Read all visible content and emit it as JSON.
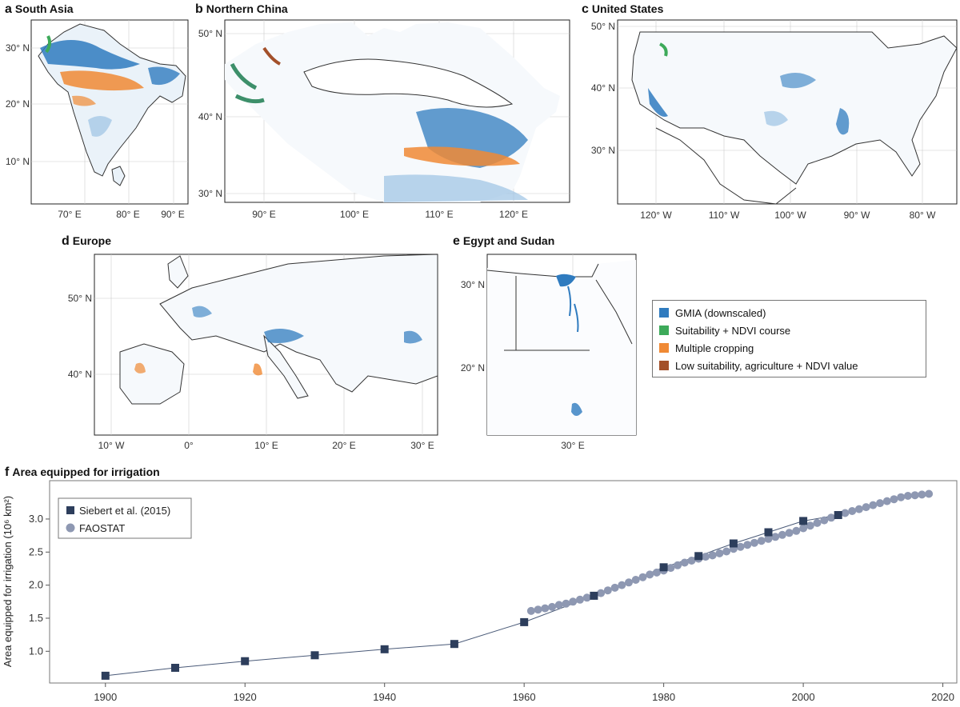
{
  "panels": {
    "a": {
      "letter": "a",
      "title": "South Asia",
      "x_ticks": [
        "70° E",
        "80° E",
        "90° E"
      ],
      "y_ticks": [
        "30° N",
        "20° N",
        "10° N"
      ]
    },
    "b": {
      "letter": "b",
      "title": "Northern China",
      "x_ticks": [
        "90° E",
        "100° E",
        "110° E",
        "120° E"
      ],
      "y_ticks": [
        "50° N",
        "40° N",
        "30° N"
      ]
    },
    "c": {
      "letter": "c",
      "title": "United States",
      "x_ticks": [
        "120° W",
        "110° W",
        "100° W",
        "90° W",
        "80° W"
      ],
      "y_ticks": [
        "50° N",
        "40° N",
        "30° N"
      ]
    },
    "d": {
      "letter": "d",
      "title": "Europe",
      "x_ticks": [
        "10° W",
        "0°",
        "10° E",
        "20° E",
        "30° E"
      ],
      "y_ticks": [
        "50° N",
        "40° N"
      ]
    },
    "e": {
      "letter": "e",
      "title": "Egypt and Sudan",
      "x_ticks": [
        "30° E"
      ],
      "y_ticks": [
        "30° N",
        "20° N"
      ]
    },
    "f": {
      "letter": "f",
      "title": "Area equipped for irrigation"
    }
  },
  "map_legend": [
    {
      "label": "GMIA (downscaled)",
      "color": "#2f7bbf"
    },
    {
      "label": "Suitability + NDVI course",
      "color": "#3daa5a"
    },
    {
      "label": "Multiple cropping",
      "color": "#f08a35"
    },
    {
      "label": "Low suitability, agriculture + NDVI value",
      "color": "#a3502a"
    }
  ],
  "chart_data": {
    "type": "scatter",
    "title": "Area equipped for irrigation",
    "ylabel": "Area equipped for irrigation (10⁶ km²)",
    "xlabel": "",
    "xlim": [
      1892,
      2022
    ],
    "ylim": [
      0.52,
      3.58
    ],
    "x_ticks": [
      1900,
      1920,
      1940,
      1960,
      1980,
      2000,
      2020
    ],
    "y_ticks": [
      1.0,
      1.5,
      2.0,
      2.5,
      3.0
    ],
    "y_tick_labels": [
      "1.0",
      "1.5",
      "2.0",
      "2.5",
      "3.0"
    ],
    "legend_position": "top-left",
    "series": [
      {
        "name": "Siebert et al. (2015)",
        "marker": "square",
        "color": "#2d3e5c",
        "x": [
          1900,
          1910,
          1920,
          1930,
          1940,
          1950,
          1960,
          1970,
          1980,
          1985,
          1990,
          1995,
          2000,
          2005
        ],
        "y": [
          0.63,
          0.75,
          0.85,
          0.94,
          1.03,
          1.11,
          1.44,
          1.84,
          2.27,
          2.44,
          2.63,
          2.8,
          2.97,
          3.06
        ]
      },
      {
        "name": "FAOSTAT",
        "marker": "circle",
        "color": "#8e98b2",
        "x": [
          1961,
          1962,
          1963,
          1964,
          1965,
          1966,
          1967,
          1968,
          1969,
          1970,
          1971,
          1972,
          1973,
          1974,
          1975,
          1976,
          1977,
          1978,
          1979,
          1980,
          1981,
          1982,
          1983,
          1984,
          1985,
          1986,
          1987,
          1988,
          1989,
          1990,
          1991,
          1992,
          1993,
          1994,
          1995,
          1996,
          1997,
          1998,
          1999,
          2000,
          2001,
          2002,
          2003,
          2004,
          2005,
          2006,
          2007,
          2008,
          2009,
          2010,
          2011,
          2012,
          2013,
          2014,
          2015,
          2016,
          2017,
          2018
        ],
        "y": [
          1.61,
          1.63,
          1.65,
          1.67,
          1.7,
          1.72,
          1.75,
          1.78,
          1.81,
          1.84,
          1.88,
          1.92,
          1.96,
          2.0,
          2.04,
          2.08,
          2.12,
          2.16,
          2.19,
          2.22,
          2.26,
          2.3,
          2.34,
          2.37,
          2.4,
          2.43,
          2.45,
          2.48,
          2.51,
          2.55,
          2.58,
          2.61,
          2.64,
          2.67,
          2.7,
          2.73,
          2.76,
          2.79,
          2.82,
          2.86,
          2.9,
          2.94,
          2.98,
          3.02,
          3.06,
          3.09,
          3.12,
          3.15,
          3.18,
          3.21,
          3.24,
          3.27,
          3.3,
          3.33,
          3.35,
          3.36,
          3.37,
          3.38
        ]
      }
    ]
  }
}
